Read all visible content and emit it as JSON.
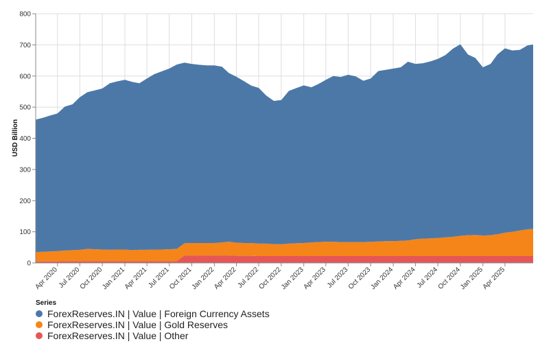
{
  "chart_data": {
    "type": "area",
    "stacked": true,
    "xlabel": "",
    "ylabel": "USD Billion",
    "ylim": [
      0,
      800
    ],
    "yticks": [
      0,
      100,
      200,
      300,
      400,
      500,
      600,
      700,
      800
    ],
    "xlim": [
      "2020-01-03",
      "2025-07-25"
    ],
    "xticks": [
      {
        "date": "2020-04-01",
        "label": "Apr 2020"
      },
      {
        "date": "2020-07-01",
        "label": "Jul 2020"
      },
      {
        "date": "2020-10-01",
        "label": "Oct 2020"
      },
      {
        "date": "2021-01-01",
        "label": "Jan 2021"
      },
      {
        "date": "2021-04-01",
        "label": "Apr 2021"
      },
      {
        "date": "2021-07-01",
        "label": "Jul 2021"
      },
      {
        "date": "2021-10-01",
        "label": "Oct 2021"
      },
      {
        "date": "2022-01-01",
        "label": "Jan 2022"
      },
      {
        "date": "2022-04-01",
        "label": "Apr 2022"
      },
      {
        "date": "2022-07-01",
        "label": "Jul 2022"
      },
      {
        "date": "2022-10-01",
        "label": "Oct 2022"
      },
      {
        "date": "2023-01-01",
        "label": "Jan 2023"
      },
      {
        "date": "2023-04-01",
        "label": "Apr 2023"
      },
      {
        "date": "2023-07-01",
        "label": "Jul 2023"
      },
      {
        "date": "2023-10-01",
        "label": "Oct 2023"
      },
      {
        "date": "2024-01-01",
        "label": "Jan 2024"
      },
      {
        "date": "2024-04-01",
        "label": "Apr 2024"
      },
      {
        "date": "2024-07-01",
        "label": "Jul 2024"
      },
      {
        "date": "2024-10-01",
        "label": "Oct 2024"
      },
      {
        "date": "2025-01-01",
        "label": "Jan 2025"
      },
      {
        "date": "2025-04-01",
        "label": "Apr 2025"
      }
    ],
    "grid": true,
    "legend_title": "Series",
    "legend_position": "bottom-left",
    "x": [
      "2020-01-03",
      "2020-02-01",
      "2020-03-01",
      "2020-04-01",
      "2020-05-01",
      "2020-06-01",
      "2020-07-01",
      "2020-08-01",
      "2020-09-01",
      "2020-10-01",
      "2020-11-01",
      "2020-12-01",
      "2021-01-01",
      "2021-02-01",
      "2021-03-01",
      "2021-04-01",
      "2021-05-01",
      "2021-06-01",
      "2021-07-01",
      "2021-08-01",
      "2021-09-01",
      "2021-10-01",
      "2021-11-01",
      "2021-12-01",
      "2022-01-01",
      "2022-02-01",
      "2022-03-01",
      "2022-04-01",
      "2022-05-01",
      "2022-06-01",
      "2022-07-01",
      "2022-08-01",
      "2022-09-01",
      "2022-10-01",
      "2022-11-01",
      "2022-12-01",
      "2023-01-01",
      "2023-02-01",
      "2023-03-01",
      "2023-04-01",
      "2023-05-01",
      "2023-06-01",
      "2023-07-01",
      "2023-08-01",
      "2023-09-01",
      "2023-10-01",
      "2023-11-01",
      "2023-12-01",
      "2024-01-01",
      "2024-02-01",
      "2024-03-01",
      "2024-04-01",
      "2024-05-01",
      "2024-06-01",
      "2024-07-01",
      "2024-08-01",
      "2024-09-01",
      "2024-10-01",
      "2024-11-01",
      "2024-12-01",
      "2025-01-01",
      "2025-02-01",
      "2025-03-01",
      "2025-04-01",
      "2025-05-01",
      "2025-06-01",
      "2025-07-01",
      "2025-07-25"
    ],
    "series": [
      {
        "name": "ForexReserves.IN | Value | Other",
        "color": "#e45756",
        "values": [
          5,
          5,
          5,
          5,
          6,
          6,
          6,
          6,
          6,
          6,
          6,
          6,
          6,
          6,
          6,
          6,
          6,
          6,
          6,
          6,
          24,
          24,
          24,
          24,
          24,
          24,
          24,
          23,
          23,
          23,
          22,
          22,
          22,
          22,
          22,
          22,
          22,
          22,
          22,
          22,
          22,
          22,
          22,
          22,
          22,
          22,
          22,
          22,
          22,
          22,
          22,
          22,
          22,
          22,
          22,
          22,
          22,
          22,
          22,
          22,
          22,
          22,
          22,
          22,
          22,
          22,
          22,
          22
        ]
      },
      {
        "name": "ForexReserves.IN | Value | Gold Reserves",
        "color": "#f58518",
        "values": [
          30,
          31,
          32,
          33,
          34,
          35,
          36,
          39,
          38,
          37,
          36,
          37,
          37,
          35,
          36,
          36,
          37,
          37,
          38,
          39,
          39,
          40,
          40,
          40,
          40,
          42,
          44,
          42,
          41,
          41,
          40,
          40,
          38,
          38,
          40,
          41,
          42,
          44,
          45,
          46,
          46,
          45,
          45,
          45,
          45,
          46,
          47,
          48,
          48,
          49,
          50,
          54,
          56,
          57,
          58,
          60,
          62,
          65,
          67,
          68,
          66,
          67,
          70,
          75,
          78,
          82,
          86,
          87
        ]
      },
      {
        "name": "ForexReserves.IN | Value | Foreign Currency Assets",
        "color": "#4c78a8",
        "values": [
          425,
          430,
          436,
          442,
          462,
          468,
          490,
          503,
          510,
          517,
          535,
          540,
          545,
          540,
          535,
          550,
          563,
          572,
          580,
          592,
          580,
          575,
          572,
          570,
          570,
          564,
          542,
          533,
          520,
          505,
          500,
          475,
          460,
          463,
          490,
          498,
          506,
          498,
          507,
          520,
          532,
          530,
          537,
          532,
          518,
          524,
          547,
          550,
          554,
          557,
          574,
          563,
          563,
          568,
          575,
          585,
          604,
          615,
          580,
          568,
          540,
          550,
          577,
          592,
          582,
          580,
          590,
          592
        ]
      }
    ]
  }
}
